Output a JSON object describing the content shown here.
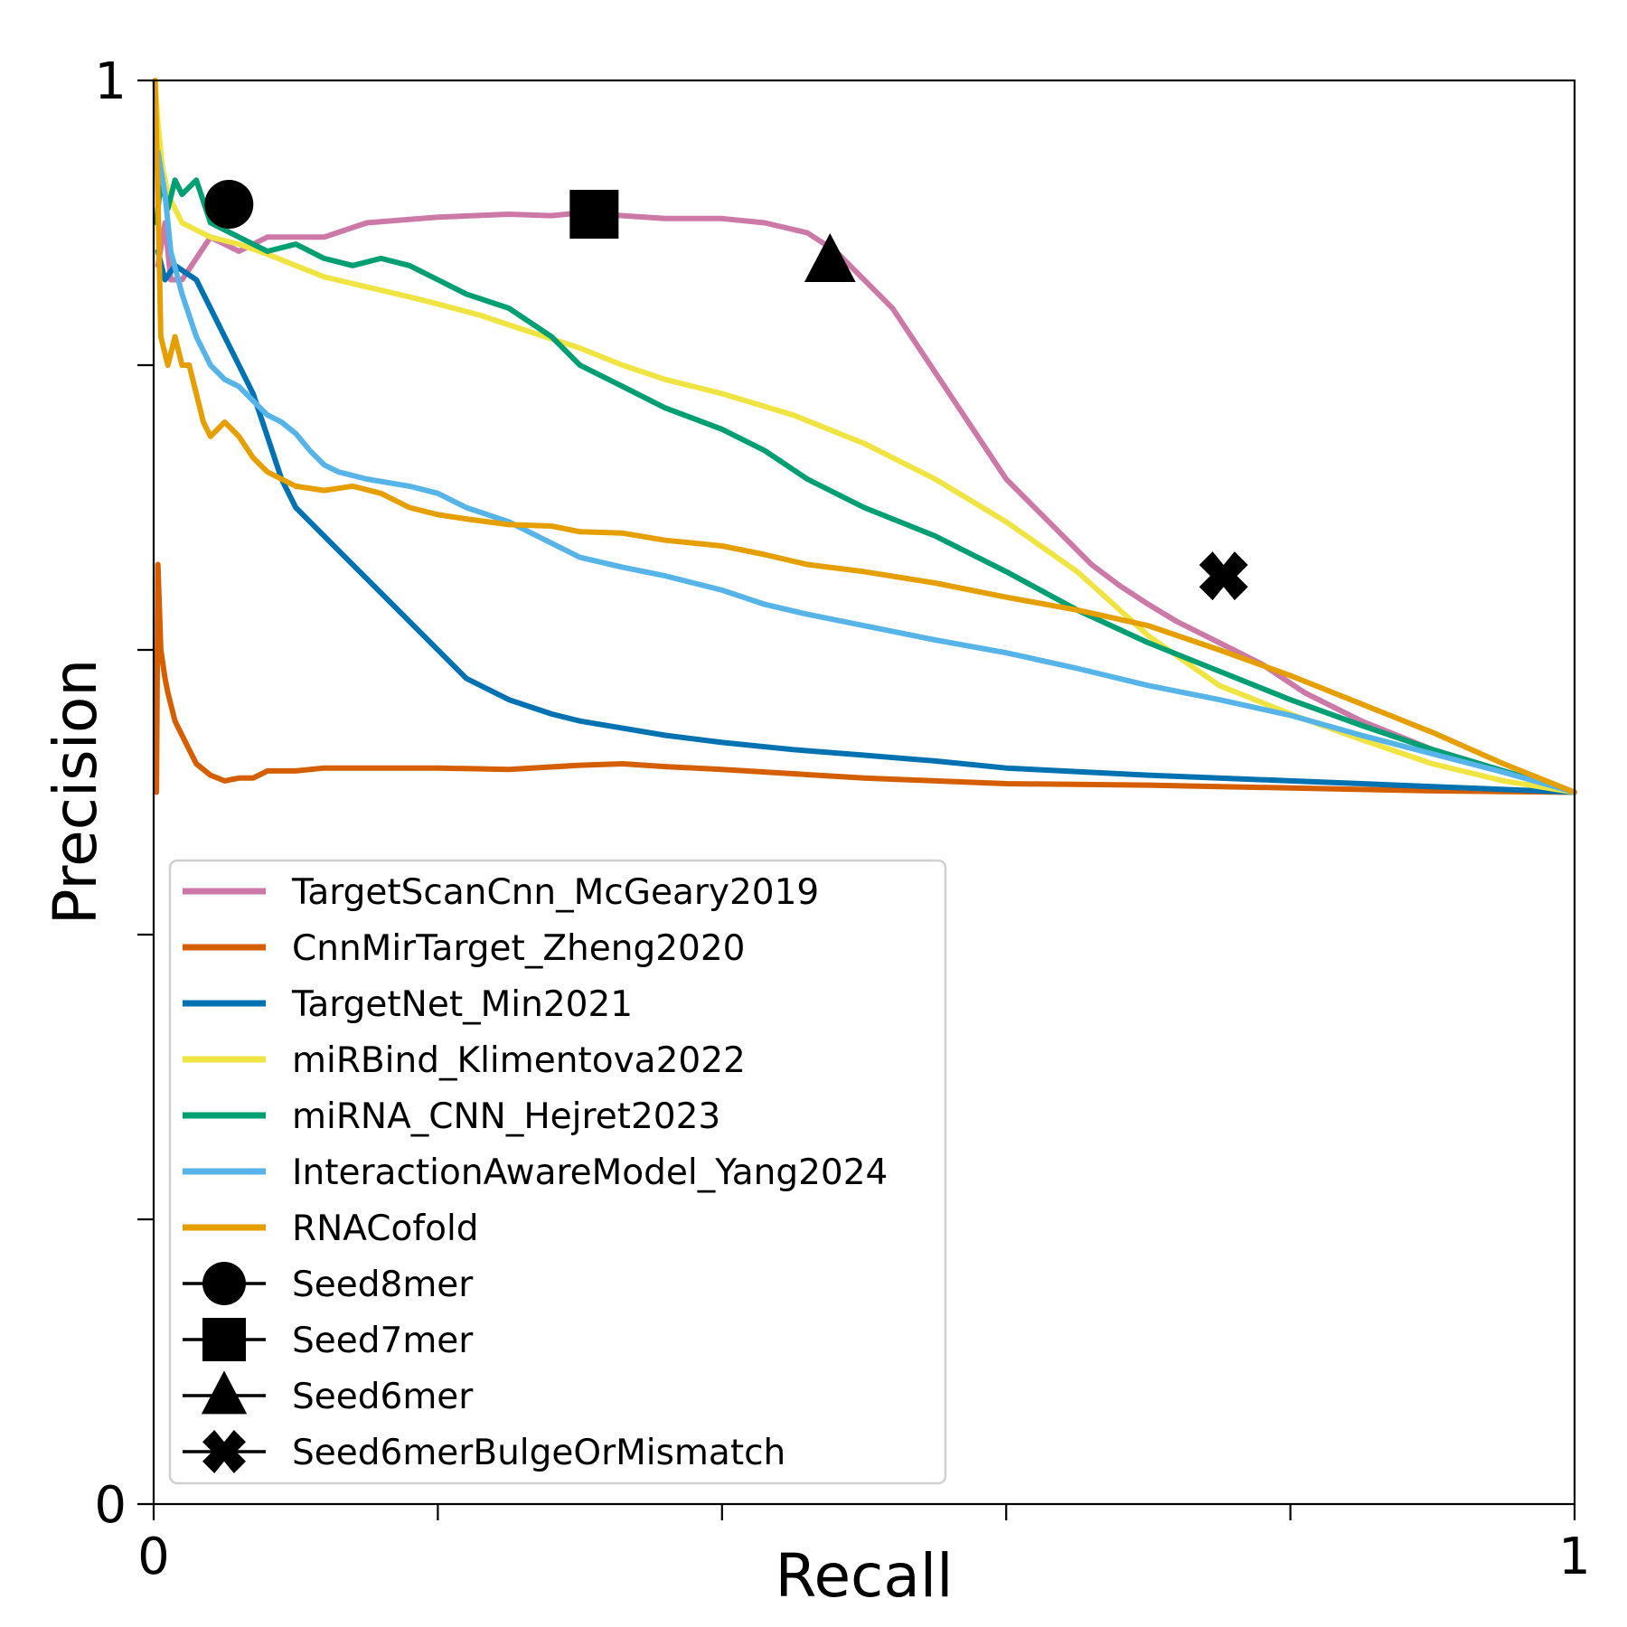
{
  "chart_data": {
    "type": "line",
    "title": "",
    "xlabel": "Recall",
    "ylabel": "Precision",
    "xlim": [
      0,
      1
    ],
    "ylim": [
      0,
      1
    ],
    "x_ticks": [
      0,
      0.2,
      0.4,
      0.6,
      0.8,
      1
    ],
    "y_ticks": [
      0,
      0.2,
      0.4,
      0.6,
      0.8,
      1
    ],
    "x_tick_labels": [
      "0",
      "",
      "",
      "",
      "",
      "1"
    ],
    "y_tick_labels": [
      "0",
      "",
      "",
      "",
      "",
      "1"
    ],
    "grid": false,
    "legend_position": "lower-left",
    "series": [
      {
        "name": "TargetScanCnn_McGeary2019",
        "color": "#CC79A7",
        "x": [
          0.003,
          0.008,
          0.012,
          0.02,
          0.04,
          0.06,
          0.08,
          0.1,
          0.12,
          0.15,
          0.2,
          0.25,
          0.28,
          0.3,
          0.33,
          0.36,
          0.4,
          0.43,
          0.46,
          0.48,
          0.5,
          0.52,
          0.54,
          0.56,
          0.58,
          0.6,
          0.62,
          0.64,
          0.66,
          0.68,
          0.7,
          0.72,
          0.75,
          0.78,
          0.81,
          0.85,
          0.9,
          0.95,
          1.0
        ],
        "y": [
          0.87,
          0.9,
          0.86,
          0.86,
          0.89,
          0.88,
          0.89,
          0.89,
          0.89,
          0.9,
          0.904,
          0.906,
          0.905,
          0.907,
          0.905,
          0.903,
          0.903,
          0.9,
          0.893,
          0.88,
          0.86,
          0.84,
          0.81,
          0.78,
          0.75,
          0.72,
          0.7,
          0.68,
          0.66,
          0.645,
          0.632,
          0.62,
          0.605,
          0.59,
          0.57,
          0.55,
          0.53,
          0.515,
          0.5
        ]
      },
      {
        "name": "CnnMirTarget_Zheng2020",
        "color": "#D55E00",
        "x": [
          0.002,
          0.003,
          0.005,
          0.008,
          0.01,
          0.015,
          0.02,
          0.025,
          0.03,
          0.04,
          0.05,
          0.06,
          0.07,
          0.08,
          0.1,
          0.12,
          0.15,
          0.2,
          0.25,
          0.3,
          0.33,
          0.36,
          0.4,
          0.45,
          0.5,
          0.55,
          0.6,
          0.7,
          0.8,
          0.9,
          1.0
        ],
        "y": [
          0.5,
          0.66,
          0.6,
          0.58,
          0.57,
          0.55,
          0.54,
          0.53,
          0.52,
          0.512,
          0.508,
          0.51,
          0.51,
          0.515,
          0.515,
          0.517,
          0.517,
          0.517,
          0.516,
          0.519,
          0.52,
          0.518,
          0.516,
          0.513,
          0.51,
          0.508,
          0.506,
          0.505,
          0.503,
          0.501,
          0.5
        ]
      },
      {
        "name": "TargetNet_Min2021",
        "color": "#0072B2",
        "x": [
          0.003,
          0.008,
          0.015,
          0.03,
          0.04,
          0.05,
          0.06,
          0.07,
          0.08,
          0.09,
          0.1,
          0.12,
          0.15,
          0.18,
          0.2,
          0.22,
          0.25,
          0.28,
          0.3,
          0.33,
          0.36,
          0.4,
          0.45,
          0.5,
          0.55,
          0.6,
          0.7,
          0.8,
          0.9,
          1.0
        ],
        "y": [
          0.88,
          0.86,
          0.87,
          0.86,
          0.84,
          0.82,
          0.8,
          0.78,
          0.75,
          0.72,
          0.7,
          0.68,
          0.65,
          0.62,
          0.6,
          0.58,
          0.565,
          0.555,
          0.55,
          0.545,
          0.54,
          0.535,
          0.53,
          0.526,
          0.522,
          0.517,
          0.512,
          0.508,
          0.504,
          0.5
        ]
      },
      {
        "name": "miRBind_Klimentova2022",
        "color": "#F0E442",
        "x": [
          0.001,
          0.003,
          0.006,
          0.01,
          0.02,
          0.04,
          0.06,
          0.08,
          0.1,
          0.12,
          0.15,
          0.18,
          0.2,
          0.23,
          0.26,
          0.3,
          0.33,
          0.36,
          0.4,
          0.45,
          0.5,
          0.55,
          0.6,
          0.65,
          0.7,
          0.75,
          0.8,
          0.85,
          0.9,
          0.95,
          1.0
        ],
        "y": [
          1.0,
          0.97,
          0.94,
          0.92,
          0.9,
          0.89,
          0.885,
          0.878,
          0.87,
          0.862,
          0.855,
          0.848,
          0.843,
          0.835,
          0.825,
          0.812,
          0.8,
          0.79,
          0.78,
          0.765,
          0.745,
          0.72,
          0.69,
          0.655,
          0.61,
          0.575,
          0.555,
          0.537,
          0.52,
          0.508,
          0.5
        ]
      },
      {
        "name": "miRNA_CNN_Hejret2023",
        "color": "#009E73",
        "x": [
          0.002,
          0.005,
          0.01,
          0.015,
          0.02,
          0.03,
          0.04,
          0.06,
          0.08,
          0.1,
          0.12,
          0.14,
          0.16,
          0.18,
          0.2,
          0.22,
          0.25,
          0.28,
          0.3,
          0.33,
          0.36,
          0.4,
          0.43,
          0.46,
          0.5,
          0.55,
          0.6,
          0.65,
          0.7,
          0.75,
          0.8,
          0.85,
          0.9,
          0.95,
          1.0
        ],
        "y": [
          0.9,
          0.93,
          0.91,
          0.93,
          0.92,
          0.93,
          0.9,
          0.89,
          0.88,
          0.885,
          0.875,
          0.87,
          0.875,
          0.87,
          0.86,
          0.85,
          0.84,
          0.82,
          0.8,
          0.785,
          0.77,
          0.755,
          0.74,
          0.72,
          0.7,
          0.68,
          0.655,
          0.628,
          0.605,
          0.585,
          0.565,
          0.547,
          0.53,
          0.515,
          0.5
        ]
      },
      {
        "name": "InteractionAwareModel_Yang2024",
        "color": "#56B4E9",
        "x": [
          0.003,
          0.008,
          0.012,
          0.02,
          0.03,
          0.04,
          0.05,
          0.06,
          0.07,
          0.08,
          0.09,
          0.1,
          0.11,
          0.12,
          0.13,
          0.15,
          0.18,
          0.2,
          0.22,
          0.25,
          0.28,
          0.3,
          0.33,
          0.36,
          0.4,
          0.43,
          0.46,
          0.5,
          0.55,
          0.6,
          0.65,
          0.7,
          0.75,
          0.8,
          0.85,
          0.9,
          0.95,
          1.0
        ],
        "y": [
          0.95,
          0.92,
          0.88,
          0.85,
          0.82,
          0.8,
          0.79,
          0.785,
          0.775,
          0.765,
          0.76,
          0.752,
          0.74,
          0.73,
          0.725,
          0.72,
          0.715,
          0.71,
          0.7,
          0.69,
          0.675,
          0.665,
          0.658,
          0.652,
          0.642,
          0.632,
          0.625,
          0.617,
          0.607,
          0.598,
          0.587,
          0.575,
          0.565,
          0.554,
          0.54,
          0.527,
          0.514,
          0.5
        ]
      },
      {
        "name": "RNACofold",
        "color": "#E69F00",
        "x": [
          0.001,
          0.003,
          0.005,
          0.01,
          0.015,
          0.02,
          0.025,
          0.03,
          0.035,
          0.04,
          0.05,
          0.06,
          0.07,
          0.08,
          0.09,
          0.1,
          0.12,
          0.14,
          0.16,
          0.18,
          0.2,
          0.22,
          0.25,
          0.28,
          0.3,
          0.33,
          0.36,
          0.4,
          0.43,
          0.46,
          0.5,
          0.55,
          0.6,
          0.65,
          0.7,
          0.75,
          0.8,
          0.85,
          0.9,
          0.95,
          1.0
        ],
        "y": [
          1.0,
          0.92,
          0.82,
          0.8,
          0.82,
          0.8,
          0.8,
          0.78,
          0.76,
          0.75,
          0.76,
          0.75,
          0.735,
          0.725,
          0.72,
          0.715,
          0.712,
          0.715,
          0.71,
          0.7,
          0.695,
          0.692,
          0.688,
          0.687,
          0.683,
          0.682,
          0.677,
          0.673,
          0.667,
          0.66,
          0.655,
          0.647,
          0.637,
          0.628,
          0.617,
          0.6,
          0.582,
          0.562,
          0.542,
          0.52,
          0.5
        ]
      }
    ],
    "markers": [
      {
        "name": "Seed8mer",
        "shape": "circle",
        "x": 0.053,
        "y": 0.913
      },
      {
        "name": "Seed7mer",
        "shape": "square",
        "x": 0.31,
        "y": 0.906
      },
      {
        "name": "Seed6mer",
        "shape": "triangle",
        "x": 0.476,
        "y": 0.873
      },
      {
        "name": "Seed6merBulgeOrMismatch",
        "shape": "x",
        "x": 0.753,
        "y": 0.652
      }
    ]
  }
}
